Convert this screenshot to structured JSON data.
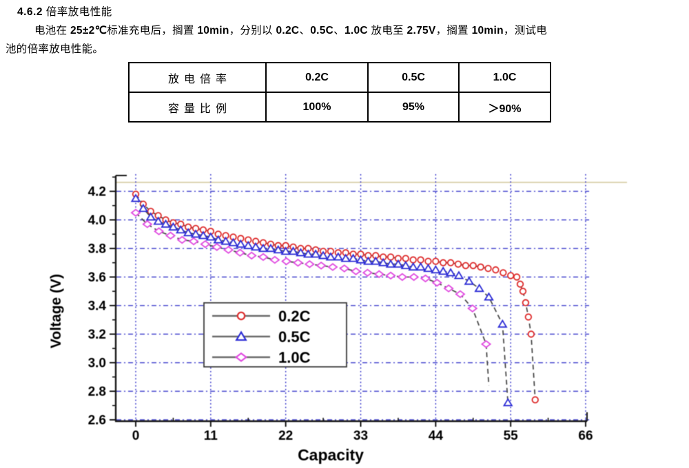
{
  "heading": {
    "segments": [
      {
        "t": "4.6.2",
        "b": true
      },
      {
        "t": "  倍率放电性能",
        "b": false
      }
    ]
  },
  "intro": {
    "line1_segments": [
      {
        "t": "电池在 ",
        "b": false
      },
      {
        "t": "25±2℃",
        "b": true
      },
      {
        "t": "标准充电后，搁置 ",
        "b": false
      },
      {
        "t": "10min",
        "b": true
      },
      {
        "t": "，分别以 ",
        "b": false
      },
      {
        "t": "0.2C",
        "b": true
      },
      {
        "t": "、",
        "b": false
      },
      {
        "t": "0.5C",
        "b": true
      },
      {
        "t": "、",
        "b": false
      },
      {
        "t": "1.0C",
        "b": true
      },
      {
        "t": " 放电至 ",
        "b": false
      },
      {
        "t": "2.75V",
        "b": true
      },
      {
        "t": "，搁置 ",
        "b": false
      },
      {
        "t": "10min",
        "b": true
      },
      {
        "t": "，测试电",
        "b": false
      }
    ],
    "line2_segments": [
      {
        "t": "池的倍率放电性能。",
        "b": false
      }
    ]
  },
  "rate_table": {
    "rows": [
      {
        "label": "放电倍率",
        "values": [
          "0.2C",
          "0.5C",
          "1.0C"
        ]
      },
      {
        "label": "容量比例",
        "values": [
          "100%",
          "95%",
          "＞90%"
        ]
      }
    ]
  },
  "chart_data": {
    "type": "line",
    "title": "",
    "xlabel": "Capacity",
    "ylabel": "Voltage (V)",
    "xlim": [
      0,
      66
    ],
    "ylim": [
      2.6,
      4.2
    ],
    "x_ticks": [
      0,
      11,
      22,
      33,
      44,
      55,
      66
    ],
    "y_ticks": [
      2.6,
      2.8,
      3.0,
      3.2,
      3.4,
      3.6,
      3.8,
      4.0,
      4.2
    ],
    "grid": true,
    "legend_position": "inside-center-left",
    "colors": {
      "grid": "#3d3dcc",
      "axis": "#141414",
      "series_line": "#4a4a4a",
      "top_rule": "#cfc394"
    },
    "series": [
      {
        "name": "0.2C",
        "marker": "circle",
        "color": "#dd2a2a",
        "points": [
          [
            0,
            4.18
          ],
          [
            1.1,
            4.11
          ],
          [
            2.2,
            4.06
          ],
          [
            3.3,
            4.03
          ],
          [
            4.4,
            4.0
          ],
          [
            5.5,
            3.98
          ],
          [
            6.6,
            3.97
          ],
          [
            7.7,
            3.95
          ],
          [
            8.8,
            3.94
          ],
          [
            9.9,
            3.93
          ],
          [
            11,
            3.92
          ],
          [
            12.1,
            3.9
          ],
          [
            13.2,
            3.89
          ],
          [
            14.3,
            3.88
          ],
          [
            15.4,
            3.87
          ],
          [
            16.5,
            3.86
          ],
          [
            17.6,
            3.85
          ],
          [
            18.7,
            3.84
          ],
          [
            19.8,
            3.83
          ],
          [
            20.9,
            3.82
          ],
          [
            22,
            3.82
          ],
          [
            23.1,
            3.81
          ],
          [
            24.2,
            3.8
          ],
          [
            25.3,
            3.8
          ],
          [
            26.4,
            3.79
          ],
          [
            27.5,
            3.78
          ],
          [
            28.6,
            3.78
          ],
          [
            29.7,
            3.77
          ],
          [
            30.8,
            3.77
          ],
          [
            31.9,
            3.76
          ],
          [
            33,
            3.76
          ],
          [
            34.1,
            3.75
          ],
          [
            35.2,
            3.75
          ],
          [
            36.3,
            3.74
          ],
          [
            37.4,
            3.74
          ],
          [
            38.5,
            3.73
          ],
          [
            39.6,
            3.73
          ],
          [
            40.7,
            3.72
          ],
          [
            41.8,
            3.72
          ],
          [
            42.9,
            3.71
          ],
          [
            44,
            3.71
          ],
          [
            45.1,
            3.7
          ],
          [
            46.2,
            3.7
          ],
          [
            47.3,
            3.69
          ],
          [
            48.4,
            3.68
          ],
          [
            49.5,
            3.68
          ],
          [
            50.6,
            3.67
          ],
          [
            51.7,
            3.66
          ],
          [
            52.8,
            3.65
          ],
          [
            53.9,
            3.63
          ],
          [
            55,
            3.61
          ],
          [
            55.9,
            3.6
          ],
          [
            56.4,
            3.55
          ],
          [
            56.8,
            3.5
          ],
          [
            57.2,
            3.42
          ],
          [
            57.6,
            3.32
          ],
          [
            58.0,
            3.2
          ],
          [
            58.6,
            2.74
          ]
        ],
        "tail_no_marker": null
      },
      {
        "name": "0.5C",
        "marker": "triangle",
        "color": "#2b2bd5",
        "points": [
          [
            0,
            4.15
          ],
          [
            1.1,
            4.08
          ],
          [
            2.2,
            4.02
          ],
          [
            3.3,
            3.99
          ],
          [
            4.4,
            3.97
          ],
          [
            5.5,
            3.95
          ],
          [
            6.6,
            3.93
          ],
          [
            7.7,
            3.91
          ],
          [
            8.8,
            3.9
          ],
          [
            9.9,
            3.89
          ],
          [
            11,
            3.88
          ],
          [
            12.1,
            3.86
          ],
          [
            13.2,
            3.85
          ],
          [
            14.3,
            3.84
          ],
          [
            15.4,
            3.83
          ],
          [
            16.5,
            3.82
          ],
          [
            17.6,
            3.81
          ],
          [
            18.7,
            3.8
          ],
          [
            19.8,
            3.8
          ],
          [
            20.9,
            3.79
          ],
          [
            22,
            3.78
          ],
          [
            23.1,
            3.78
          ],
          [
            24.2,
            3.77
          ],
          [
            25.3,
            3.76
          ],
          [
            26.4,
            3.76
          ],
          [
            27.5,
            3.75
          ],
          [
            28.6,
            3.74
          ],
          [
            29.7,
            3.74
          ],
          [
            30.8,
            3.73
          ],
          [
            31.9,
            3.73
          ],
          [
            33,
            3.72
          ],
          [
            34.1,
            3.71
          ],
          [
            35.2,
            3.71
          ],
          [
            36.3,
            3.7
          ],
          [
            37.4,
            3.69
          ],
          [
            38.5,
            3.69
          ],
          [
            39.6,
            3.68
          ],
          [
            40.7,
            3.67
          ],
          [
            41.8,
            3.67
          ],
          [
            42.9,
            3.66
          ],
          [
            44,
            3.65
          ],
          [
            45.1,
            3.64
          ],
          [
            46.2,
            3.63
          ],
          [
            47.4,
            3.61
          ],
          [
            48.9,
            3.57
          ],
          [
            50.4,
            3.52
          ],
          [
            51.8,
            3.46
          ],
          [
            53.8,
            3.27
          ],
          [
            54.6,
            2.72
          ]
        ],
        "tail_no_marker": null
      },
      {
        "name": "1.0C",
        "marker": "diamond",
        "color": "#e049e0",
        "points": [
          [
            0,
            4.05
          ],
          [
            1.7,
            3.97
          ],
          [
            3.4,
            3.92
          ],
          [
            5.1,
            3.89
          ],
          [
            6.8,
            3.86
          ],
          [
            8.5,
            3.85
          ],
          [
            10.2,
            3.83
          ],
          [
            11.9,
            3.81
          ],
          [
            13.6,
            3.79
          ],
          [
            15.3,
            3.77
          ],
          [
            17,
            3.75
          ],
          [
            18.7,
            3.74
          ],
          [
            20.4,
            3.72
          ],
          [
            22.1,
            3.71
          ],
          [
            23.8,
            3.7
          ],
          [
            25.5,
            3.69
          ],
          [
            27.2,
            3.68
          ],
          [
            28.9,
            3.67
          ],
          [
            30.6,
            3.66
          ],
          [
            32.3,
            3.64
          ],
          [
            34,
            3.63
          ],
          [
            35.7,
            3.62
          ],
          [
            37.4,
            3.61
          ],
          [
            39.1,
            3.6
          ],
          [
            40.8,
            3.6
          ],
          [
            42.5,
            3.59
          ],
          [
            44.2,
            3.56
          ],
          [
            45.9,
            3.52
          ],
          [
            47.6,
            3.48
          ],
          [
            49.4,
            3.38
          ],
          [
            51.4,
            3.13
          ]
        ],
        "tail_no_marker": [
          51.8,
          2.84
        ]
      }
    ]
  }
}
